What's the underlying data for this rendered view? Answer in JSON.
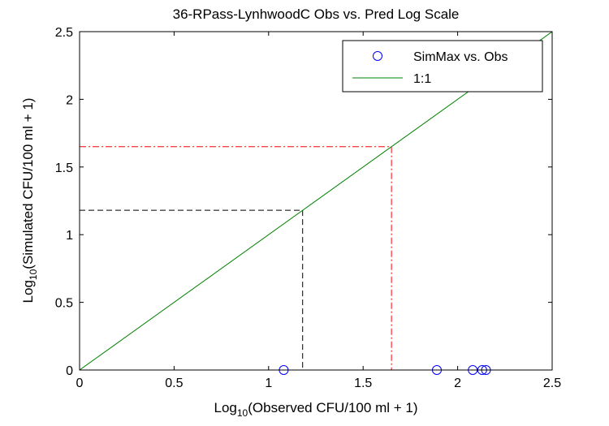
{
  "chart_data": {
    "type": "scatter",
    "title": "36-RPass-LynhwoodC Obs vs. Pred Log Scale",
    "xlabel": {
      "prefix": "Log",
      "sub": "10",
      "rest": "(Observed CFU/100 ml + 1)"
    },
    "ylabel": {
      "prefix": "Log",
      "sub": "10",
      "rest": "(Simulated CFU/100 ml + 1)"
    },
    "xlim": [
      0,
      2.5
    ],
    "ylim": [
      0,
      2.5
    ],
    "xticks": [
      "0",
      "0.5",
      "1",
      "1.5",
      "2",
      "2.5"
    ],
    "yticks": [
      "0",
      "0.5",
      "1",
      "1.5",
      "2",
      "2.5"
    ],
    "grid": false,
    "legend_position": "top-right",
    "series": [
      {
        "name": "SimMax vs. Obs",
        "marker": "circle",
        "color": "#0000ff",
        "points": [
          {
            "x": 1.08,
            "y": 0
          },
          {
            "x": 1.89,
            "y": 0
          },
          {
            "x": 2.08,
            "y": 0
          },
          {
            "x": 2.13,
            "y": 0
          },
          {
            "x": 2.15,
            "y": 0
          }
        ]
      },
      {
        "name": "1:1",
        "line": "solid",
        "color": "#008000",
        "points": [
          {
            "x": 0,
            "y": 0
          },
          {
            "x": 2.5,
            "y": 2.5
          }
        ]
      }
    ],
    "reference_lines": [
      {
        "value": 1.18,
        "color": "#000000",
        "style": "dashed"
      },
      {
        "value": 1.65,
        "color": "#ff0000",
        "style": "dash-dot"
      }
    ]
  }
}
